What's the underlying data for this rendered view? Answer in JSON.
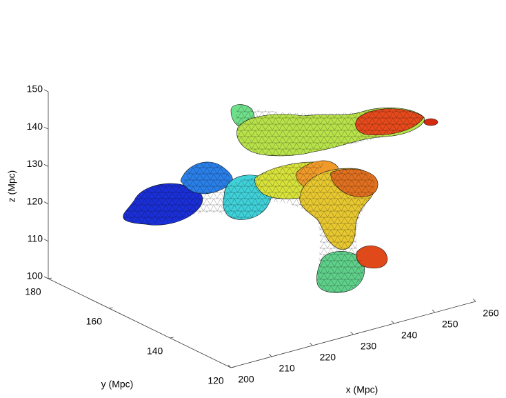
{
  "chart_data": {
    "type": "surface3d",
    "xlabel": "x (Mpc)",
    "ylabel": "y (Mpc)",
    "zlabel": "z (Mpc)",
    "xlim": [
      200,
      260
    ],
    "ylim": [
      120,
      180
    ],
    "zlim": [
      100,
      150
    ],
    "xticks": [
      200,
      210,
      220,
      230,
      240,
      250,
      260
    ],
    "yticks": [
      120,
      140,
      160,
      180
    ],
    "zticks": [
      100,
      110,
      120,
      130,
      140,
      150
    ]
  }
}
